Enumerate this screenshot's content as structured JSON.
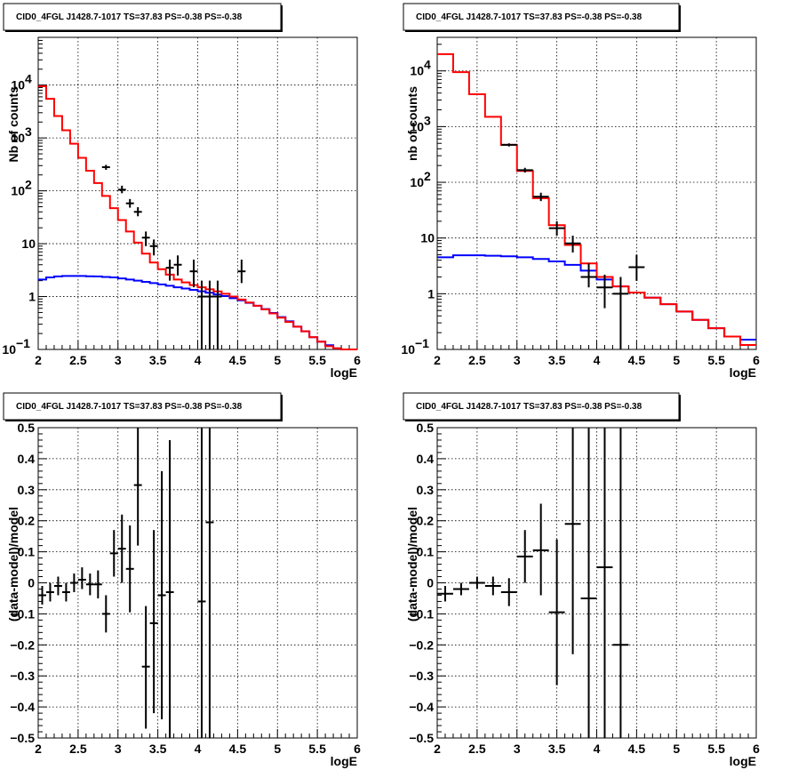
{
  "chart_data": [
    {
      "type": "line",
      "panel": "top-left",
      "title": "CID0_4FGL J1428.7-1017 TS=37.83 PS=-0.38 PS=-0.38",
      "xlabel": "logE",
      "ylabel": "Nb of counts",
      "xlim": [
        2,
        6
      ],
      "ylim": [
        0.1,
        80000
      ],
      "yscale": "log",
      "grid": true,
      "x_ticks": [
        "2",
        "2.5",
        "3",
        "3.5",
        "4",
        "4.5",
        "5",
        "5.5",
        "6"
      ],
      "y_ticks": [
        {
          "v": 0.1,
          "base": "10",
          "exp": "−1"
        },
        {
          "v": 1,
          "label": "1"
        },
        {
          "v": 10,
          "label": "10"
        },
        {
          "v": 100,
          "base": "10",
          "exp": "2"
        },
        {
          "v": 1000,
          "base": "10",
          "exp": "3"
        },
        {
          "v": 10000,
          "base": "10",
          "exp": "4"
        }
      ],
      "bin_edges": [
        2,
        2.1,
        2.2,
        2.3,
        2.4,
        2.5,
        2.6,
        2.7,
        2.8,
        2.9,
        3.0,
        3.1,
        3.2,
        3.3,
        3.4,
        3.5,
        3.6,
        3.7,
        3.8,
        3.9,
        4.0,
        4.1,
        4.2,
        4.3,
        4.4,
        4.5,
        4.6,
        4.7,
        4.8,
        4.9,
        5.0,
        5.1,
        5.2,
        5.3,
        5.4,
        5.5,
        5.6,
        5.7,
        5.8,
        5.9,
        6.0
      ],
      "series": [
        {
          "role": "total-model",
          "color": "#ff0000",
          "values": [
            9500,
            5500,
            2600,
            1400,
            780,
            420,
            240,
            140,
            80,
            47,
            28,
            17,
            10.5,
            6.5,
            4.4,
            3.3,
            2.6,
            2.1,
            1.85,
            1.65,
            1.5,
            1.37,
            1.25,
            1.13,
            1.0,
            0.88,
            0.77,
            0.67,
            0.57,
            0.48,
            0.4,
            0.33,
            0.27,
            0.22,
            0.17,
            0.14,
            0.115,
            0.105,
            0.1,
            0.1
          ]
        },
        {
          "role": "component",
          "color": "#0000ff",
          "values": [
            2.1,
            2.3,
            2.4,
            2.45,
            2.45,
            2.45,
            2.42,
            2.4,
            2.35,
            2.3,
            2.2,
            2.1,
            2.0,
            1.9,
            1.8,
            1.7,
            1.6,
            1.5,
            1.42,
            1.34,
            1.26,
            1.18,
            1.1,
            1.02,
            0.93,
            0.85,
            0.76,
            0.67,
            0.58,
            0.49,
            0.41,
            0.34,
            0.27,
            0.22,
            0.17,
            0.14,
            0.12,
            0.105,
            0.1,
            0.1
          ]
        }
      ],
      "points": [
        {
          "x": 2.85,
          "y": 280,
          "xerr": 0.05,
          "ylo": 250,
          "yhi": 310
        },
        {
          "x": 3.05,
          "y": 105,
          "xerr": 0.05,
          "ylo": 90,
          "yhi": 125
        },
        {
          "x": 3.15,
          "y": 58,
          "xerr": 0.05,
          "ylo": 48,
          "yhi": 70
        },
        {
          "x": 3.25,
          "y": 40,
          "xerr": 0.05,
          "ylo": 33,
          "yhi": 49
        },
        {
          "x": 3.35,
          "y": 13,
          "xerr": 0.05,
          "ylo": 9,
          "yhi": 17
        },
        {
          "x": 3.45,
          "y": 9,
          "xerr": 0.05,
          "ylo": 6,
          "yhi": 12
        },
        {
          "x": 3.65,
          "y": 3.5,
          "xerr": 0.05,
          "ylo": 2,
          "yhi": 5
        },
        {
          "x": 3.75,
          "y": 4,
          "xerr": 0.05,
          "ylo": 2.5,
          "yhi": 6
        },
        {
          "x": 3.95,
          "y": 3,
          "xerr": 0.05,
          "ylo": 1.5,
          "yhi": 5
        },
        {
          "x": 4.05,
          "y": 1,
          "xerr": 0.05,
          "ylo": 0.1,
          "yhi": 2
        },
        {
          "x": 4.15,
          "y": 1,
          "xerr": 0.05,
          "ylo": 0.1,
          "yhi": 2
        },
        {
          "x": 4.25,
          "y": 1,
          "xerr": 0.05,
          "ylo": 0.1,
          "yhi": 2
        },
        {
          "x": 4.55,
          "y": 3,
          "xerr": 0.05,
          "ylo": 1.8,
          "yhi": 5
        }
      ]
    },
    {
      "type": "line",
      "panel": "top-right",
      "title": "CID0_4FGL J1428.7-1017 TS=37.83 PS=-0.38 PS=-0.38",
      "xlabel": "logE",
      "ylabel": "nb of counts",
      "xlim": [
        2,
        6
      ],
      "ylim": [
        0.1,
        40000
      ],
      "yscale": "log",
      "grid": true,
      "x_ticks": [
        "2",
        "2.5",
        "3",
        "3.5",
        "4",
        "4.5",
        "5",
        "5.5",
        "6"
      ],
      "y_ticks": [
        {
          "v": 0.1,
          "base": "10",
          "exp": "−1"
        },
        {
          "v": 1,
          "label": "1"
        },
        {
          "v": 10,
          "label": "10"
        },
        {
          "v": 100,
          "base": "10",
          "exp": "2"
        },
        {
          "v": 1000,
          "base": "10",
          "exp": "3"
        },
        {
          "v": 10000,
          "base": "10",
          "exp": "4"
        }
      ],
      "bin_edges": [
        2,
        2.2,
        2.4,
        2.6,
        2.8,
        3.0,
        3.2,
        3.4,
        3.6,
        3.8,
        4.0,
        4.2,
        4.4,
        4.6,
        4.8,
        5.0,
        5.2,
        5.4,
        5.6,
        5.8,
        6.0
      ],
      "series": [
        {
          "role": "total-model",
          "color": "#ff0000",
          "values": [
            20000,
            9500,
            3800,
            1500,
            470,
            160,
            52,
            17,
            7.5,
            3.5,
            2.0,
            1.35,
            1.05,
            0.85,
            0.65,
            0.48,
            0.34,
            0.24,
            0.17,
            0.12
          ]
        },
        {
          "role": "component",
          "color": "#0000ff",
          "values": [
            4.5,
            4.9,
            4.9,
            4.8,
            4.7,
            4.5,
            4.2,
            3.8,
            3.3,
            2.6,
            1.8,
            1.35,
            1.05,
            0.85,
            0.65,
            0.48,
            0.34,
            0.24,
            0.17,
            0.15
          ]
        }
      ],
      "points": [
        {
          "x": 2.9,
          "y": 470,
          "xerr": 0.1,
          "ylo": 440,
          "yhi": 500
        },
        {
          "x": 3.1,
          "y": 165,
          "xerr": 0.1,
          "ylo": 150,
          "yhi": 182
        },
        {
          "x": 3.3,
          "y": 55,
          "xerr": 0.1,
          "ylo": 46,
          "yhi": 65
        },
        {
          "x": 3.5,
          "y": 15,
          "xerr": 0.1,
          "ylo": 11,
          "yhi": 20
        },
        {
          "x": 3.7,
          "y": 8,
          "xerr": 0.1,
          "ylo": 5.5,
          "yhi": 11
        },
        {
          "x": 3.9,
          "y": 2,
          "xerr": 0.1,
          "ylo": 1.3,
          "yhi": 3.5
        },
        {
          "x": 4.1,
          "y": 1.3,
          "xerr": 0.1,
          "ylo": 0.55,
          "yhi": 2.2
        },
        {
          "x": 4.3,
          "y": 1,
          "xerr": 0.1,
          "ylo": 0.1,
          "yhi": 2
        },
        {
          "x": 4.5,
          "y": 3,
          "xerr": 0.1,
          "ylo": 1.7,
          "yhi": 5
        }
      ]
    },
    {
      "type": "scatter",
      "panel": "bottom-left",
      "title": "CID0_4FGL J1428.7-1017 TS=37.83 PS=-0.38 PS=-0.38",
      "xlabel": "logE",
      "ylabel": "(data-model)/model",
      "xlim": [
        2,
        6
      ],
      "ylim": [
        -0.5,
        0.5
      ],
      "grid": true,
      "x_ticks": [
        "2",
        "2.5",
        "3",
        "3.5",
        "4",
        "4.5",
        "5",
        "5.5",
        "6"
      ],
      "y_ticks": [
        "−0.5",
        "−0.4",
        "−0.3",
        "−0.2",
        "−0.1",
        "0",
        "0.1",
        "0.2",
        "0.3",
        "0.4",
        "0.5"
      ],
      "points": [
        {
          "x": 2.05,
          "y": -0.04,
          "xerr": 0.05,
          "ylo": -0.07,
          "yhi": -0.01
        },
        {
          "x": 2.15,
          "y": -0.03,
          "xerr": 0.05,
          "ylo": -0.06,
          "yhi": 0.0
        },
        {
          "x": 2.25,
          "y": -0.01,
          "xerr": 0.05,
          "ylo": -0.04,
          "yhi": 0.02
        },
        {
          "x": 2.35,
          "y": -0.03,
          "xerr": 0.05,
          "ylo": -0.06,
          "yhi": 0.0
        },
        {
          "x": 2.45,
          "y": 0.0,
          "xerr": 0.05,
          "ylo": -0.03,
          "yhi": 0.03
        },
        {
          "x": 2.55,
          "y": 0.01,
          "xerr": 0.05,
          "ylo": -0.02,
          "yhi": 0.05
        },
        {
          "x": 2.65,
          "y": -0.005,
          "xerr": 0.05,
          "ylo": -0.04,
          "yhi": 0.03
        },
        {
          "x": 2.75,
          "y": -0.005,
          "xerr": 0.05,
          "ylo": -0.05,
          "yhi": 0.04
        },
        {
          "x": 2.85,
          "y": -0.1,
          "xerr": 0.05,
          "ylo": -0.16,
          "yhi": -0.04
        },
        {
          "x": 2.95,
          "y": 0.095,
          "xerr": 0.05,
          "ylo": 0.02,
          "yhi": 0.17
        },
        {
          "x": 3.05,
          "y": 0.11,
          "xerr": 0.05,
          "ylo": 0.0,
          "yhi": 0.22
        },
        {
          "x": 3.15,
          "y": 0.045,
          "xerr": 0.05,
          "ylo": -0.095,
          "yhi": 0.185
        },
        {
          "x": 3.25,
          "y": 0.315,
          "xerr": 0.05,
          "ylo": 0.12,
          "yhi": 0.5
        },
        {
          "x": 3.35,
          "y": -0.27,
          "xerr": 0.05,
          "ylo": -0.47,
          "yhi": -0.075
        },
        {
          "x": 3.45,
          "y": -0.13,
          "xerr": 0.05,
          "ylo": -0.42,
          "yhi": 0.17
        },
        {
          "x": 3.55,
          "y": -0.04,
          "xerr": 0.05,
          "ylo": -0.44,
          "yhi": 0.36
        },
        {
          "x": 3.65,
          "y": -0.03,
          "xerr": 0.05,
          "ylo": -0.5,
          "yhi": 0.46
        },
        {
          "x": 4.05,
          "y": -0.06,
          "xerr": 0.05,
          "ylo": -0.5,
          "yhi": 0.5
        },
        {
          "x": 4.15,
          "y": 0.195,
          "xerr": 0.05,
          "ylo": -0.5,
          "yhi": 0.5
        }
      ]
    },
    {
      "type": "scatter",
      "panel": "bottom-right",
      "title": "CID0_4FGL J1428.7-1017 TS=37.83 PS=-0.38 PS=-0.38",
      "xlabel": "logE",
      "ylabel": "(data-model)/model",
      "xlim": [
        2,
        6
      ],
      "ylim": [
        -0.5,
        0.5
      ],
      "grid": true,
      "x_ticks": [
        "2",
        "2.5",
        "3",
        "3.5",
        "4",
        "4.5",
        "5",
        "5.5",
        "6"
      ],
      "y_ticks": [
        "−0.5",
        "−0.4",
        "−0.3",
        "−0.2",
        "−0.1",
        "0",
        "0.1",
        "0.2",
        "0.3",
        "0.4",
        "0.5"
      ],
      "points": [
        {
          "x": 2.1,
          "y": -0.035,
          "xerr": 0.1,
          "ylo": -0.06,
          "yhi": -0.01
        },
        {
          "x": 2.3,
          "y": -0.02,
          "xerr": 0.1,
          "ylo": -0.04,
          "yhi": 0.0
        },
        {
          "x": 2.5,
          "y": 0.0,
          "xerr": 0.1,
          "ylo": -0.02,
          "yhi": 0.02
        },
        {
          "x": 2.7,
          "y": -0.01,
          "xerr": 0.1,
          "ylo": -0.04,
          "yhi": 0.02
        },
        {
          "x": 2.9,
          "y": -0.03,
          "xerr": 0.1,
          "ylo": -0.075,
          "yhi": 0.015
        },
        {
          "x": 3.1,
          "y": 0.085,
          "xerr": 0.1,
          "ylo": 0.0,
          "yhi": 0.17
        },
        {
          "x": 3.3,
          "y": 0.105,
          "xerr": 0.1,
          "ylo": -0.04,
          "yhi": 0.255
        },
        {
          "x": 3.5,
          "y": -0.095,
          "xerr": 0.1,
          "ylo": -0.33,
          "yhi": 0.14
        },
        {
          "x": 3.7,
          "y": 0.19,
          "xerr": 0.1,
          "ylo": -0.23,
          "yhi": 0.5
        },
        {
          "x": 3.9,
          "y": -0.05,
          "xerr": 0.1,
          "ylo": -0.5,
          "yhi": 0.5
        },
        {
          "x": 4.1,
          "y": 0.05,
          "xerr": 0.1,
          "ylo": -0.5,
          "yhi": 0.5
        },
        {
          "x": 4.3,
          "y": -0.2,
          "xerr": 0.1,
          "ylo": -0.5,
          "yhi": 0.5
        }
      ]
    }
  ]
}
